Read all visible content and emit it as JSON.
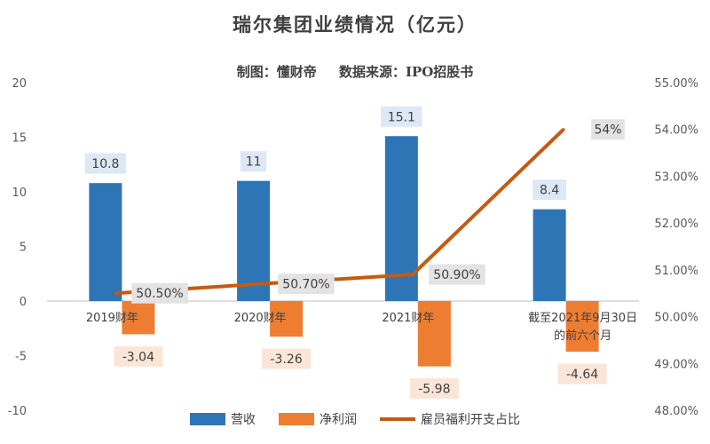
{
  "title": "瑞尔集团业绩情况（亿元）",
  "subtitle": {
    "maker": "制图：懂财帝",
    "source": "数据来源：IPO招股书"
  },
  "legend": {
    "revenue": "营收",
    "net_profit": "净利润",
    "welfare_ratio": "雇员福利开支占比"
  },
  "colors": {
    "revenue": "#2e75b6",
    "net_profit": "#ed7d31",
    "welfare_ratio": "#c55a11",
    "revenue_label_bg": "#dde8f5",
    "net_profit_label_bg": "#fbe5d6",
    "ratio_label_bg": "#e3e3e3"
  },
  "chart_data": {
    "type": "bar",
    "title": "瑞尔集团业绩情况（亿元）",
    "subtitle": "制图：懂财帝　数据来源：IPO招股书",
    "categories": [
      "2019财年",
      "2020财年",
      "2021财年",
      "截至2021年9月30日的前六个月"
    ],
    "category_lines": [
      [
        "2019财年"
      ],
      [
        "2020财年"
      ],
      [
        "2021财年"
      ],
      [
        "截至2021年9月30日",
        "的前六个月"
      ]
    ],
    "series": [
      {
        "name": "营收",
        "type": "bar",
        "axis": "left",
        "values": [
          10.8,
          11,
          15.1,
          8.4
        ],
        "labels": [
          "10.8",
          "11",
          "15.1",
          "8.4"
        ]
      },
      {
        "name": "净利润",
        "type": "bar",
        "axis": "left",
        "values": [
          -3.04,
          -3.26,
          -5.98,
          -4.64
        ],
        "labels": [
          "-3.04",
          "-3.26",
          "-5.98",
          "-4.64"
        ]
      },
      {
        "name": "雇员福利开支占比",
        "type": "line",
        "axis": "right",
        "values": [
          50.5,
          50.7,
          50.9,
          54.0
        ],
        "labels": [
          "50.50%",
          "50.70%",
          "50.90%",
          "54%"
        ]
      }
    ],
    "y_left": {
      "min": -10,
      "max": 20,
      "ticks": [
        -10,
        -5,
        0,
        5,
        10,
        15,
        20
      ]
    },
    "y_right": {
      "min": 48,
      "max": 55,
      "ticks": [
        "48.00%",
        "49.00%",
        "50.00%",
        "51.00%",
        "52.00%",
        "53.00%",
        "54.00%",
        "55.00%"
      ]
    },
    "grid": false,
    "legend_position": "bottom"
  }
}
